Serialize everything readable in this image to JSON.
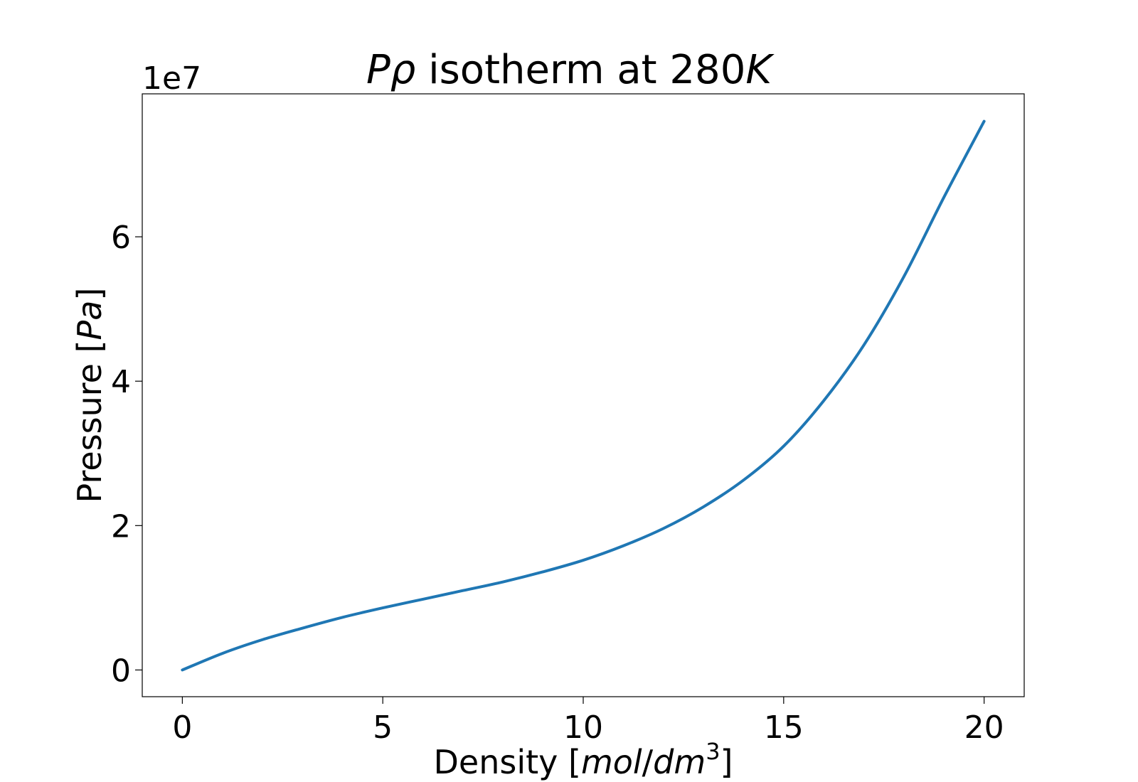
{
  "chart_data": {
    "type": "line",
    "title": {
      "lead_italic": "Pρ",
      "middle": " isotherm at 280",
      "tail_italic": "K"
    },
    "xlabel": {
      "lead": "Density [",
      "unit_a_italic": "mol",
      "slash": "/",
      "unit_b_italic": "dm",
      "exponent": "3",
      "trail": "]"
    },
    "ylabel": {
      "lead": "Pressure [",
      "unit_italic": "Pa",
      "trail": "]"
    },
    "y_offset_text": "1e7",
    "xlim": [
      -1,
      21
    ],
    "ylim": [
      -0.37,
      7.98
    ],
    "y_scale_factor": 10000000,
    "x_ticks": [
      0,
      5,
      10,
      15,
      20
    ],
    "x_tick_labels": [
      "0",
      "5",
      "10",
      "15",
      "20"
    ],
    "y_ticks": [
      0,
      2,
      4,
      6
    ],
    "y_tick_labels": [
      "0",
      "2",
      "4",
      "6"
    ],
    "grid": false,
    "legend": "none",
    "line_color": "#1f77b4",
    "series": [
      {
        "x": [
          0,
          1,
          2,
          3,
          4,
          5,
          6,
          7,
          8,
          9,
          10,
          11,
          12,
          13,
          14,
          15,
          16,
          17,
          18,
          19,
          20
        ],
        "y": [
          0,
          0.23,
          0.42,
          0.58,
          0.73,
          0.86,
          0.98,
          1.1,
          1.22,
          1.36,
          1.52,
          1.72,
          1.96,
          2.26,
          2.63,
          3.1,
          3.73,
          4.5,
          5.45,
          6.55,
          7.6
        ]
      }
    ]
  }
}
